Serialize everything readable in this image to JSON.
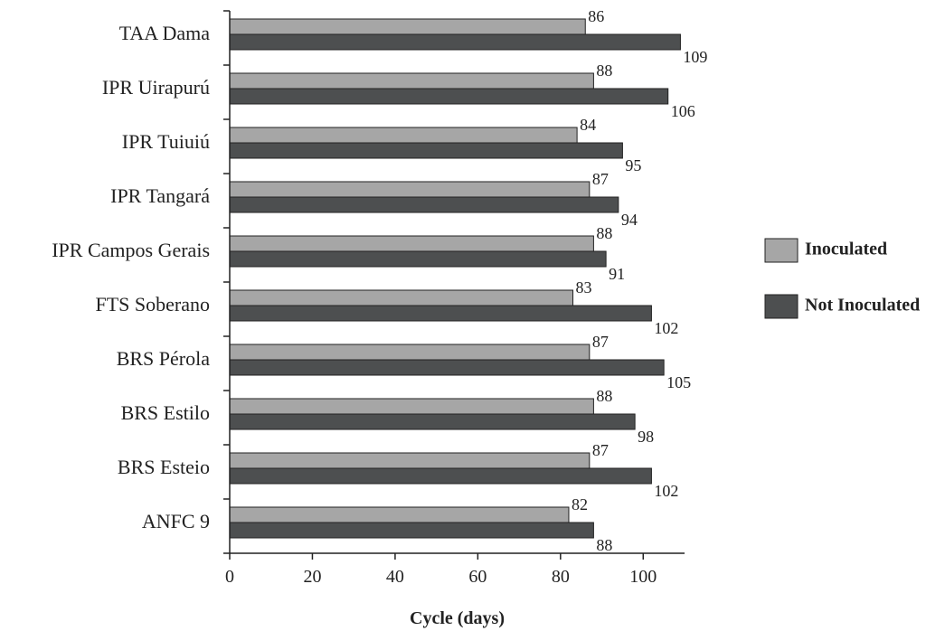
{
  "chart_data": {
    "type": "bar",
    "orientation": "horizontal",
    "categories": [
      "TAA Dama",
      "IPR Uirapurú",
      "IPR Tuiuiú",
      "IPR Tangará",
      "IPR Campos Gerais",
      "FTS Soberano",
      "BRS Pérola",
      "BRS Estilo",
      "BRS Esteio",
      "ANFC 9"
    ],
    "series": [
      {
        "name": "Inoculated",
        "values": [
          86,
          88,
          84,
          87,
          88,
          83,
          87,
          88,
          87,
          82
        ],
        "color": "#a6a6a6"
      },
      {
        "name": "Not Inoculated",
        "values": [
          109,
          106,
          95,
          94,
          91,
          102,
          105,
          98,
          102,
          88
        ],
        "color": "#4d4f50"
      }
    ],
    "xlabel": "Cycle (days)",
    "ylabel": "",
    "xlim": [
      0,
      110
    ],
    "xticks": [
      0,
      20,
      40,
      60,
      80,
      100
    ],
    "grid": false,
    "legend_position": "right"
  }
}
